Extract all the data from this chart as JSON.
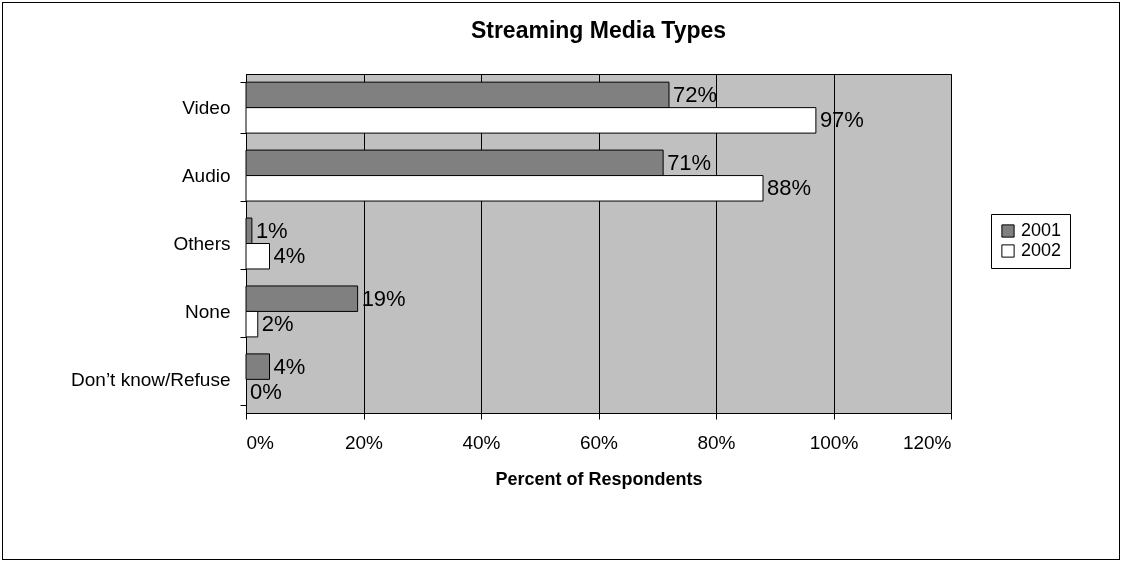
{
  "chart_data": {
    "type": "bar",
    "orientation": "horizontal",
    "title": "Streaming Media Types",
    "xlabel": "Percent of Respondents",
    "categories": [
      "Video",
      "Audio",
      "Others",
      "None",
      "Don’t know/Refuse"
    ],
    "series": [
      {
        "name": "2001",
        "color": "#808080",
        "values": [
          72,
          71,
          1,
          19,
          4
        ],
        "value_labels": [
          "72%",
          "71%",
          "1%",
          "19%",
          "4%"
        ]
      },
      {
        "name": "2002",
        "color": "#ffffff",
        "values": [
          97,
          88,
          4,
          2,
          0
        ],
        "value_labels": [
          "97%",
          "88%",
          "4%",
          "2%",
          "0%"
        ]
      }
    ],
    "xlim": [
      0,
      120
    ],
    "xticks": [
      {
        "value": 0,
        "label": "0%"
      },
      {
        "value": 20,
        "label": "20%"
      },
      {
        "value": 40,
        "label": "40%"
      },
      {
        "value": 60,
        "label": "60%"
      },
      {
        "value": 80,
        "label": "80%"
      },
      {
        "value": 100,
        "label": "100%"
      },
      {
        "value": 120,
        "label": "120%"
      }
    ],
    "grid": "x",
    "legend": "right"
  }
}
